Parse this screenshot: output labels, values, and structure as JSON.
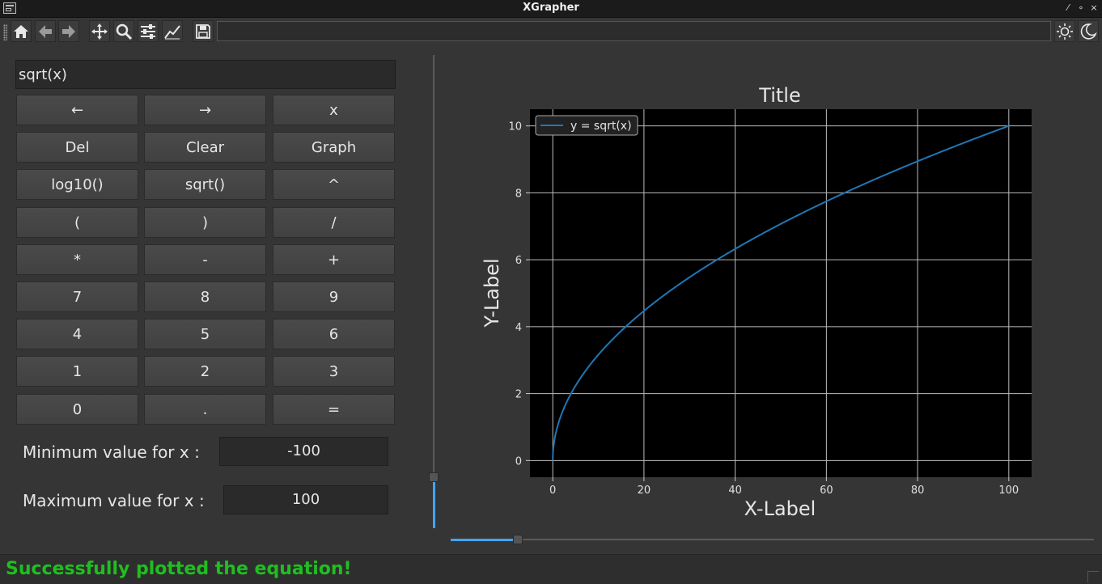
{
  "window": {
    "title": "XGrapher"
  },
  "toolbar": {
    "tools": [
      {
        "name": "home-icon"
      },
      {
        "name": "back-arrow-icon"
      },
      {
        "name": "forward-arrow-icon"
      },
      {
        "name": "pan-icon"
      },
      {
        "name": "zoom-icon"
      },
      {
        "name": "subplots-config-icon"
      },
      {
        "name": "axes-customize-icon"
      },
      {
        "name": "save-icon"
      }
    ],
    "theme": [
      {
        "name": "light-theme-icon"
      },
      {
        "name": "dark-theme-icon"
      }
    ]
  },
  "calculator": {
    "expression": "sqrt(x)",
    "keys": [
      [
        "←",
        "→",
        "x"
      ],
      [
        "Del",
        "Clear",
        "Graph"
      ],
      [
        "log10()",
        "sqrt()",
        "^"
      ],
      [
        "(",
        ")",
        "/"
      ],
      [
        "*",
        "-",
        "+"
      ],
      [
        "7",
        "8",
        "9"
      ],
      [
        "4",
        "5",
        "6"
      ],
      [
        "1",
        "2",
        "3"
      ],
      [
        "0",
        ".",
        "="
      ]
    ]
  },
  "range": {
    "min_label": "Minimum value for x :",
    "min_value": "-100",
    "max_label": "Maximum value for x :",
    "max_value": "100"
  },
  "chart_data": {
    "type": "line",
    "title": "Title",
    "xlabel": "X-Label",
    "ylabel": "Y-Label",
    "xlim": [
      -5,
      105
    ],
    "ylim": [
      -0.5,
      10.5
    ],
    "xticks": [
      0,
      20,
      40,
      60,
      80,
      100
    ],
    "yticks": [
      0,
      2,
      4,
      6,
      8,
      10
    ],
    "grid": true,
    "legend": "upper-left",
    "series": [
      {
        "name": "y = sqrt(x)",
        "color": "#1f77b4",
        "function": "sqrt",
        "x_range": [
          0,
          100
        ]
      }
    ],
    "background": "#000000"
  },
  "status": {
    "message": "Successfully plotted the equation!"
  },
  "colors": {
    "accent": "#42a5f5",
    "status_success": "#1fbf1f"
  }
}
